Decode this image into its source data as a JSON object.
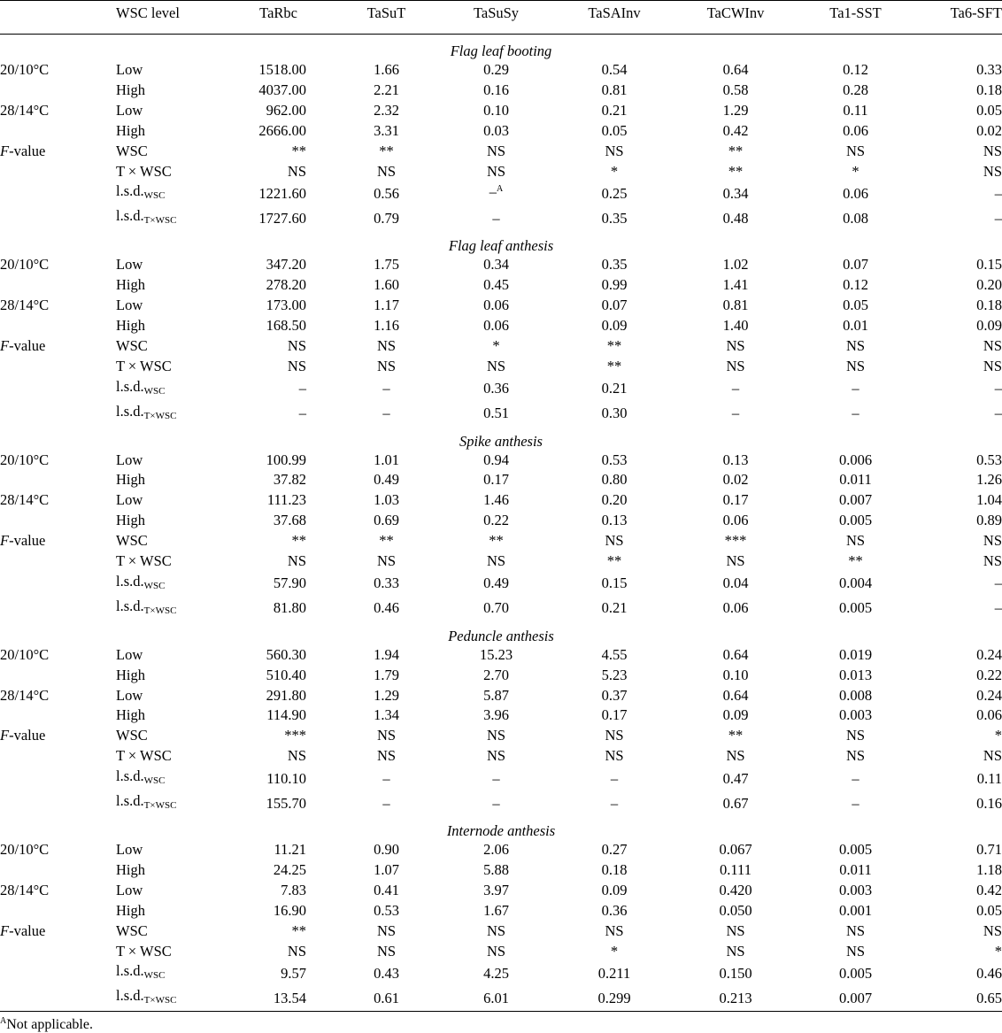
{
  "header": {
    "temp": "",
    "wsc": "WSC level",
    "cols": [
      "TaRbc",
      "TaSuT",
      "TaSuSy",
      "TaSAInv",
      "TaCWInv",
      "Ta1-SST",
      "Ta6-SFT"
    ]
  },
  "sections": [
    {
      "title": "Flag leaf booting",
      "rows": [
        {
          "temp": "20/10°C",
          "wsc": "Low",
          "v": [
            "1518.00",
            "1.66",
            "0.29",
            "0.54",
            "0.64",
            "0.12",
            "0.33"
          ]
        },
        {
          "temp": "",
          "wsc": "High",
          "v": [
            "4037.00",
            "2.21",
            "0.16",
            "0.81",
            "0.58",
            "0.28",
            "0.18"
          ]
        },
        {
          "temp": "28/14°C",
          "wsc": "Low",
          "v": [
            "962.00",
            "2.32",
            "0.10",
            "0.21",
            "1.29",
            "0.11",
            "0.05"
          ]
        },
        {
          "temp": "",
          "wsc": "High",
          "v": [
            "2666.00",
            "3.31",
            "0.03",
            "0.05",
            "0.42",
            "0.06",
            "0.02"
          ]
        },
        {
          "temp": "F-value",
          "wsc": "WSC",
          "v": [
            "**",
            "**",
            "NS",
            "NS",
            "**",
            "NS",
            "NS"
          ]
        },
        {
          "temp": "",
          "wsc": "T × WSC",
          "v": [
            "NS",
            "NS",
            "NS",
            "*",
            "**",
            "*",
            "NS"
          ]
        },
        {
          "temp": "",
          "wsc": "l.s.d.",
          "sub": "WSC",
          "v": [
            "1221.60",
            "0.56",
            "–A",
            "0.25",
            "0.34",
            "0.06",
            "–"
          ]
        },
        {
          "temp": "",
          "wsc": "l.s.d.",
          "sub": "T×WSC",
          "v": [
            "1727.60",
            "0.79",
            "–",
            "0.35",
            "0.48",
            "0.08",
            "–"
          ]
        }
      ]
    },
    {
      "title": "Flag leaf anthesis",
      "rows": [
        {
          "temp": "20/10°C",
          "wsc": "Low",
          "v": [
            "347.20",
            "1.75",
            "0.34",
            "0.35",
            "1.02",
            "0.07",
            "0.15"
          ]
        },
        {
          "temp": "",
          "wsc": "High",
          "v": [
            "278.20",
            "1.60",
            "0.45",
            "0.99",
            "1.41",
            "0.12",
            "0.20"
          ]
        },
        {
          "temp": "28/14°C",
          "wsc": "Low",
          "v": [
            "173.00",
            "1.17",
            "0.06",
            "0.07",
            "0.81",
            "0.05",
            "0.18"
          ]
        },
        {
          "temp": "",
          "wsc": "High",
          "v": [
            "168.50",
            "1.16",
            "0.06",
            "0.09",
            "1.40",
            "0.01",
            "0.09"
          ]
        },
        {
          "temp": "F-value",
          "wsc": "WSC",
          "v": [
            "NS",
            "NS",
            "*",
            "**",
            "NS",
            "NS",
            "NS"
          ]
        },
        {
          "temp": "",
          "wsc": "T × WSC",
          "v": [
            "NS",
            "NS",
            "NS",
            "**",
            "NS",
            "NS",
            "NS"
          ]
        },
        {
          "temp": "",
          "wsc": "l.s.d.",
          "sub": "WSC",
          "v": [
            "–",
            "–",
            "0.36",
            "0.21",
            "–",
            "–",
            "–"
          ]
        },
        {
          "temp": "",
          "wsc": "l.s.d.",
          "sub": "T×WSC",
          "v": [
            "–",
            "–",
            "0.51",
            "0.30",
            "–",
            "–",
            "–"
          ]
        }
      ]
    },
    {
      "title": "Spike anthesis",
      "rows": [
        {
          "temp": "20/10°C",
          "wsc": "Low",
          "v": [
            "100.99",
            "1.01",
            "0.94",
            "0.53",
            "0.13",
            "0.006",
            "0.53"
          ]
        },
        {
          "temp": "",
          "wsc": "High",
          "v": [
            "37.82",
            "0.49",
            "0.17",
            "0.80",
            "0.02",
            "0.011",
            "1.26"
          ]
        },
        {
          "temp": "28/14°C",
          "wsc": "Low",
          "v": [
            "111.23",
            "1.03",
            "1.46",
            "0.20",
            "0.17",
            "0.007",
            "1.04"
          ]
        },
        {
          "temp": "",
          "wsc": "High",
          "v": [
            "37.68",
            "0.69",
            "0.22",
            "0.13",
            "0.06",
            "0.005",
            "0.89"
          ]
        },
        {
          "temp": "F-value",
          "wsc": "WSC",
          "v": [
            "**",
            "**",
            "**",
            "NS",
            "***",
            "NS",
            "NS"
          ]
        },
        {
          "temp": "",
          "wsc": "T × WSC",
          "v": [
            "NS",
            "NS",
            "NS",
            "**",
            "NS",
            "**",
            "NS"
          ]
        },
        {
          "temp": "",
          "wsc": "l.s.d.",
          "sub": "WSC",
          "v": [
            "57.90",
            "0.33",
            "0.49",
            "0.15",
            "0.04",
            "0.004",
            "–"
          ]
        },
        {
          "temp": "",
          "wsc": "l.s.d.",
          "sub": "T×WSC",
          "v": [
            "81.80",
            "0.46",
            "0.70",
            "0.21",
            "0.06",
            "0.005",
            "–"
          ]
        }
      ]
    },
    {
      "title": "Peduncle anthesis",
      "rows": [
        {
          "temp": "20/10°C",
          "wsc": "Low",
          "v": [
            "560.30",
            "1.94",
            "15.23",
            "4.55",
            "0.64",
            "0.019",
            "0.24"
          ]
        },
        {
          "temp": "",
          "wsc": "High",
          "v": [
            "510.40",
            "1.79",
            "2.70",
            "5.23",
            "0.10",
            "0.013",
            "0.22"
          ]
        },
        {
          "temp": "28/14°C",
          "wsc": "Low",
          "v": [
            "291.80",
            "1.29",
            "5.87",
            "0.37",
            "0.64",
            "0.008",
            "0.24"
          ]
        },
        {
          "temp": "",
          "wsc": "High",
          "v": [
            "114.90",
            "1.34",
            "3.96",
            "0.17",
            "0.09",
            "0.003",
            "0.06"
          ]
        },
        {
          "temp": "F-value",
          "wsc": "WSC",
          "v": [
            "***",
            "NS",
            "NS",
            "NS",
            "**",
            "NS",
            "*"
          ]
        },
        {
          "temp": "",
          "wsc": "T × WSC",
          "v": [
            "NS",
            "NS",
            "NS",
            "NS",
            "NS",
            "NS",
            "NS"
          ]
        },
        {
          "temp": "",
          "wsc": "l.s.d.",
          "sub": "WSC",
          "v": [
            "110.10",
            "–",
            "–",
            "–",
            "0.47",
            "–",
            "0.11"
          ]
        },
        {
          "temp": "",
          "wsc": "l.s.d.",
          "sub": "T×WSC",
          "v": [
            "155.70",
            "–",
            "–",
            "–",
            "0.67",
            "–",
            "0.16"
          ]
        }
      ]
    },
    {
      "title": "Internode anthesis",
      "rows": [
        {
          "temp": "20/10°C",
          "wsc": "Low",
          "v": [
            "11.21",
            "0.90",
            "2.06",
            "0.27",
            "0.067",
            "0.005",
            "0.71"
          ]
        },
        {
          "temp": "",
          "wsc": "High",
          "v": [
            "24.25",
            "1.07",
            "5.88",
            "0.18",
            "0.111",
            "0.011",
            "1.18"
          ]
        },
        {
          "temp": "28/14°C",
          "wsc": "Low",
          "v": [
            "7.83",
            "0.41",
            "3.97",
            "0.09",
            "0.420",
            "0.003",
            "0.42"
          ]
        },
        {
          "temp": "",
          "wsc": "High",
          "v": [
            "16.90",
            "0.53",
            "1.67",
            "0.36",
            "0.050",
            "0.001",
            "0.05"
          ]
        },
        {
          "temp": "F-value",
          "wsc": "WSC",
          "v": [
            "**",
            "NS",
            "NS",
            "NS",
            "NS",
            "NS",
            "NS"
          ]
        },
        {
          "temp": "",
          "wsc": "T × WSC",
          "v": [
            "NS",
            "NS",
            "NS",
            "*",
            "NS",
            "NS",
            "*"
          ]
        },
        {
          "temp": "",
          "wsc": "l.s.d.",
          "sub": "WSC",
          "v": [
            "9.57",
            "0.43",
            "4.25",
            "0.211",
            "0.150",
            "0.005",
            "0.46"
          ]
        },
        {
          "temp": "",
          "wsc": "l.s.d.",
          "sub": "T×WSC",
          "v": [
            "13.54",
            "0.61",
            "6.01",
            "0.299",
            "0.213",
            "0.007",
            "0.65"
          ]
        }
      ]
    }
  ],
  "footnote": {
    "marker": "A",
    "text": "Not applicable."
  }
}
